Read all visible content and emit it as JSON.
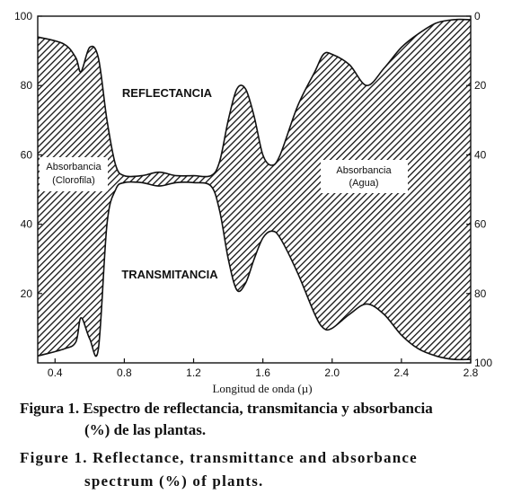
{
  "chart_data": {
    "type": "area",
    "xlabel": "Longitud de onda (µ)",
    "x_ticks": [
      "0.4",
      "0.8",
      "1.2",
      "1.6",
      "2.0",
      "2.4",
      "2.8"
    ],
    "xlim": [
      0.3,
      2.8
    ],
    "left_axis": {
      "ylim": [
        0,
        100
      ],
      "ticks": [
        "20",
        "40",
        "60",
        "80",
        "100"
      ]
    },
    "right_axis": {
      "ylim": [
        100,
        0
      ],
      "ticks": [
        "0",
        "20",
        "40",
        "60",
        "80",
        "100"
      ]
    },
    "series": [
      {
        "name": "REFLECTANCIA",
        "x": [
          0.3,
          0.45,
          0.52,
          0.55,
          0.6,
          0.65,
          0.7,
          0.75,
          0.8,
          0.9,
          1.0,
          1.1,
          1.2,
          1.3,
          1.35,
          1.4,
          1.45,
          1.5,
          1.55,
          1.6,
          1.65,
          1.7,
          1.8,
          1.9,
          1.95,
          2.0,
          2.1,
          2.2,
          2.3,
          2.4,
          2.5,
          2.6,
          2.7,
          2.8
        ],
        "values": [
          94,
          92,
          88,
          84,
          91,
          88,
          70,
          57,
          54,
          54,
          55,
          54,
          54,
          54,
          58,
          70,
          79,
          79,
          71,
          60,
          57,
          60,
          74,
          84,
          89,
          89,
          86,
          80,
          85,
          91,
          95,
          98,
          99,
          99
        ]
      },
      {
        "name": "TRANSMITANCIA",
        "x": [
          0.3,
          0.45,
          0.52,
          0.55,
          0.6,
          0.65,
          0.7,
          0.75,
          0.8,
          0.9,
          1.0,
          1.1,
          1.2,
          1.3,
          1.35,
          1.4,
          1.45,
          1.5,
          1.55,
          1.6,
          1.65,
          1.7,
          1.8,
          1.9,
          1.95,
          2.0,
          2.1,
          2.2,
          2.3,
          2.4,
          2.5,
          2.6,
          2.7,
          2.8
        ],
        "values": [
          2,
          4,
          6,
          13,
          7,
          4,
          40,
          50,
          52,
          52,
          51,
          52,
          52,
          51,
          44,
          30,
          21,
          23,
          30,
          36,
          38,
          36,
          26,
          14,
          10,
          10,
          14,
          17,
          14,
          8,
          4,
          2,
          1,
          1
        ]
      }
    ],
    "annotations": {
      "reflectance": "REFLECTANCIA",
      "transmittance": "TRANSMITANCIA",
      "abs_chl_line1": "Absorbancia",
      "abs_chl_line2": "(Clorofila)",
      "abs_water_line1": "Absorbancia",
      "abs_water_line2": "(Agua)"
    }
  },
  "caption": {
    "es_line1": "Figura 1. Espectro de reflectancia, transmitancia y absorbancia",
    "es_line2": "(%) de las plantas.",
    "en_line1": "Figure 1. Reflectance, transmittance and absorbance",
    "en_line2": "spectrum (%) of plants."
  }
}
